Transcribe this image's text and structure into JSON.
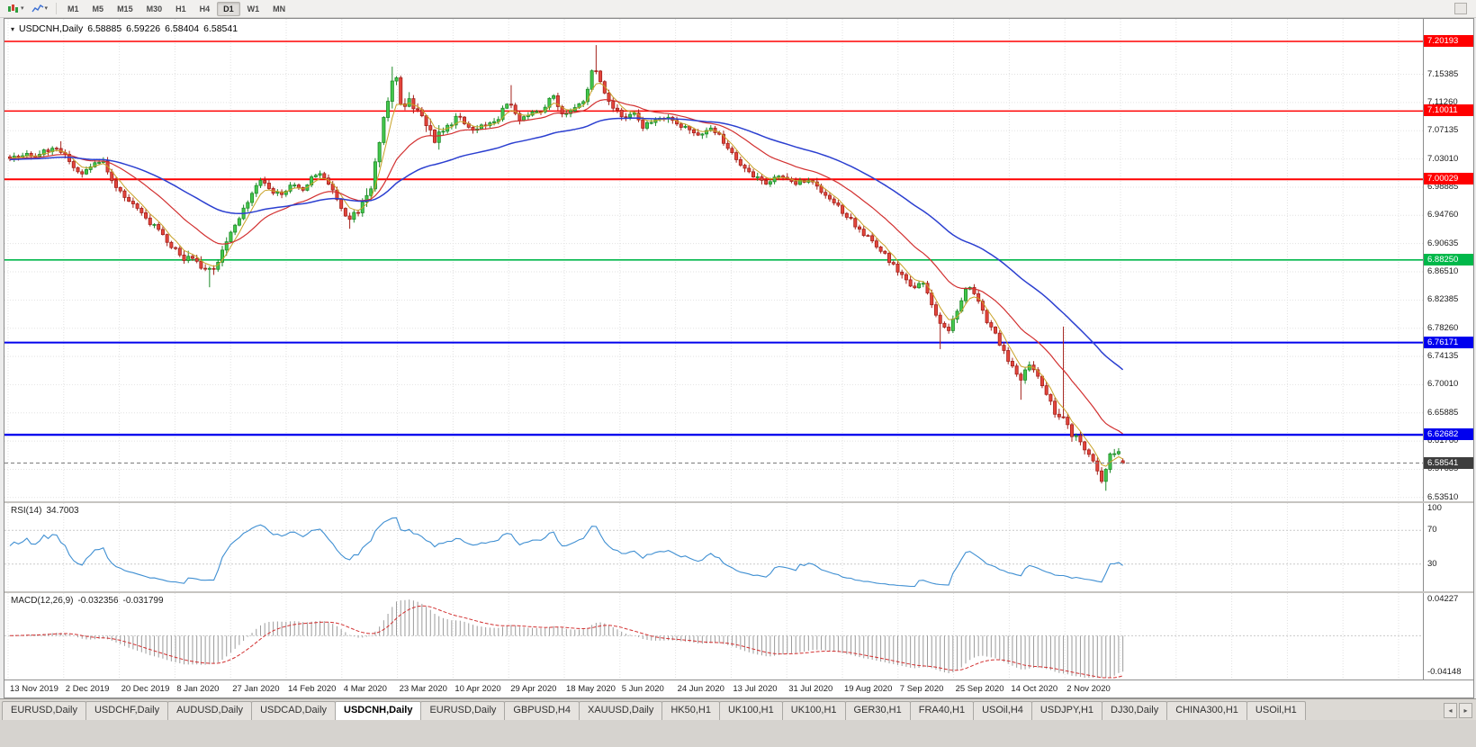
{
  "toolbar": {
    "timeframes": [
      "M1",
      "M5",
      "M15",
      "M30",
      "H1",
      "H4",
      "D1",
      "W1",
      "MN"
    ],
    "active_timeframe": "D1"
  },
  "chart": {
    "title": "USDCNH,Daily",
    "ohlc": {
      "open": "6.58885",
      "high": "6.59226",
      "low": "6.58404",
      "close": "6.58541"
    },
    "price_axis_labels": [
      "7.15385",
      "7.11260",
      "7.07135",
      "7.03010",
      "6.98885",
      "6.94760",
      "6.90635",
      "6.86510",
      "6.82385",
      "6.78260",
      "6.74135",
      "6.70010",
      "6.65885",
      "6.61760",
      "6.57635",
      "6.53510"
    ],
    "levels": [
      {
        "price": 7.20193,
        "label": "7.20193",
        "color": "#ff0000",
        "width": 1.4
      },
      {
        "price": 7.10011,
        "label": "7.10011",
        "color": "#ff0000",
        "width": 1.4
      },
      {
        "price": 7.00029,
        "label": "7.00029",
        "color": "#ff0000",
        "width": 2
      },
      {
        "price": 6.8825,
        "label": "6.88250",
        "color": "#00b84a",
        "width": 1.6
      },
      {
        "price": 6.76171,
        "label": "6.76171",
        "color": "#0000ee",
        "width": 2
      },
      {
        "price": 6.62682,
        "label": "6.62682",
        "color": "#0000ee",
        "width": 2.4
      }
    ],
    "current_price": {
      "label": "6.58541",
      "price": 6.58541,
      "color": "#3d3d3d"
    },
    "dates": [
      "13 Nov 2019",
      "2 Dec 2019",
      "20 Dec 2019",
      "8 Jan 2020",
      "27 Jan 2020",
      "14 Feb 2020",
      "4 Mar 2020",
      "23 Mar 2020",
      "10 Apr 2020",
      "29 Apr 2020",
      "18 May 2020",
      "5 Jun 2020",
      "24 Jun 2020",
      "13 Jul 2020",
      "31 Jul 2020",
      "19 Aug 2020",
      "7 Sep 2020",
      "25 Sep 2020",
      "14 Oct 2020",
      "2 Nov 2020"
    ],
    "ma": {
      "fast_color": "#c9a227",
      "mid_color": "#d23030",
      "slow_color": "#2b3fd0"
    },
    "price_path": [
      [
        6,
        7.03
      ],
      [
        40,
        7.038
      ],
      [
        62,
        7.048
      ],
      [
        72,
        7.03
      ],
      [
        88,
        7.005
      ],
      [
        100,
        7.022
      ],
      [
        112,
        7.028
      ],
      [
        125,
        6.99
      ],
      [
        140,
        6.972
      ],
      [
        155,
        6.948
      ],
      [
        170,
        6.93
      ],
      [
        185,
        6.905
      ],
      [
        200,
        6.888
      ],
      [
        215,
        6.878
      ],
      [
        228,
        6.862
      ],
      [
        238,
        6.878
      ],
      [
        250,
        6.912
      ],
      [
        262,
        6.942
      ],
      [
        275,
        6.975
      ],
      [
        288,
        7.0
      ],
      [
        298,
        6.982
      ],
      [
        310,
        6.978
      ],
      [
        322,
        6.992
      ],
      [
        335,
        6.985
      ],
      [
        348,
        7.01
      ],
      [
        360,
        7.002
      ],
      [
        372,
        6.968
      ],
      [
        382,
        6.942
      ],
      [
        395,
        6.952
      ],
      [
        405,
        6.978
      ],
      [
        412,
        7.0
      ],
      [
        422,
        7.085
      ],
      [
        430,
        7.128
      ],
      [
        436,
        7.155
      ],
      [
        444,
        7.098
      ],
      [
        452,
        7.112
      ],
      [
        460,
        7.098
      ],
      [
        470,
        7.088
      ],
      [
        480,
        7.058
      ],
      [
        492,
        7.072
      ],
      [
        505,
        7.092
      ],
      [
        515,
        7.082
      ],
      [
        525,
        7.072
      ],
      [
        538,
        7.082
      ],
      [
        552,
        7.092
      ],
      [
        563,
        7.118
      ],
      [
        572,
        7.088
      ],
      [
        585,
        7.095
      ],
      [
        598,
        7.102
      ],
      [
        612,
        7.122
      ],
      [
        622,
        7.098
      ],
      [
        635,
        7.102
      ],
      [
        648,
        7.118
      ],
      [
        657,
        7.168
      ],
      [
        666,
        7.138
      ],
      [
        676,
        7.112
      ],
      [
        688,
        7.092
      ],
      [
        700,
        7.098
      ],
      [
        712,
        7.078
      ],
      [
        725,
        7.088
      ],
      [
        738,
        7.092
      ],
      [
        752,
        7.078
      ],
      [
        772,
        7.068
      ],
      [
        790,
        7.075
      ],
      [
        805,
        7.048
      ],
      [
        820,
        7.018
      ],
      [
        835,
        7.005
      ],
      [
        850,
        6.996
      ],
      [
        865,
        7.006
      ],
      [
        880,
        6.996
      ],
      [
        897,
        7.001
      ],
      [
        915,
        6.978
      ],
      [
        930,
        6.958
      ],
      [
        945,
        6.938
      ],
      [
        960,
        6.918
      ],
      [
        975,
        6.898
      ],
      [
        988,
        6.878
      ],
      [
        1000,
        6.858
      ],
      [
        1012,
        6.842
      ],
      [
        1022,
        6.852
      ],
      [
        1032,
        6.818
      ],
      [
        1042,
        6.788
      ],
      [
        1052,
        6.778
      ],
      [
        1062,
        6.812
      ],
      [
        1072,
        6.845
      ],
      [
        1082,
        6.828
      ],
      [
        1092,
        6.798
      ],
      [
        1102,
        6.778
      ],
      [
        1112,
        6.748
      ],
      [
        1122,
        6.728
      ],
      [
        1132,
        6.708
      ],
      [
        1140,
        6.728
      ],
      [
        1148,
        6.716
      ],
      [
        1156,
        6.698
      ],
      [
        1166,
        6.668
      ],
      [
        1174,
        6.655
      ],
      [
        1180,
        6.648
      ],
      [
        1188,
        6.625
      ],
      [
        1196,
        6.618
      ],
      [
        1206,
        6.606
      ],
      [
        1214,
        6.582
      ],
      [
        1222,
        6.56
      ],
      [
        1230,
        6.596
      ],
      [
        1238,
        6.607
      ],
      [
        1243,
        6.586
      ]
    ],
    "spikes_high": [
      [
        62,
        7.056
      ],
      [
        430,
        7.165
      ],
      [
        563,
        7.138
      ],
      [
        657,
        7.1965
      ],
      [
        1177,
        6.785
      ]
    ],
    "spikes_low": [
      [
        228,
        6.8425
      ],
      [
        382,
        6.928
      ],
      [
        1042,
        6.752
      ],
      [
        1130,
        6.678
      ],
      [
        1222,
        6.545
      ]
    ]
  },
  "rsi": {
    "label": "RSI(14)",
    "value": "34.7003",
    "axis_labels": [
      "100",
      "70",
      "30"
    ],
    "levels": [
      70,
      30
    ],
    "color": "#3f8fd2"
  },
  "macd": {
    "label": "MACD(12,26,9)",
    "value_main": "-0.032356",
    "value_signal": "-0.031799",
    "axis_top": "0.04227",
    "axis_bottom": "-0.04148"
  },
  "tabs": {
    "items": [
      "EURUSD,Daily",
      "USDCHF,Daily",
      "AUDUSD,Daily",
      "USDCAD,Daily",
      "USDCNH,Daily",
      "EURUSD,Daily",
      "GBPUSD,H4",
      "XAUUSD,Daily",
      "HK50,H1",
      "UK100,H1",
      "UK100,H1",
      "GER30,H1",
      "FRA40,H1",
      "USOil,H4",
      "USDJPY,H1",
      "DJ30,Daily",
      "CHINA300,H1",
      "USOil,H1"
    ],
    "active_index": 4,
    "scroll_left": "◂",
    "scroll_right": "▸"
  }
}
